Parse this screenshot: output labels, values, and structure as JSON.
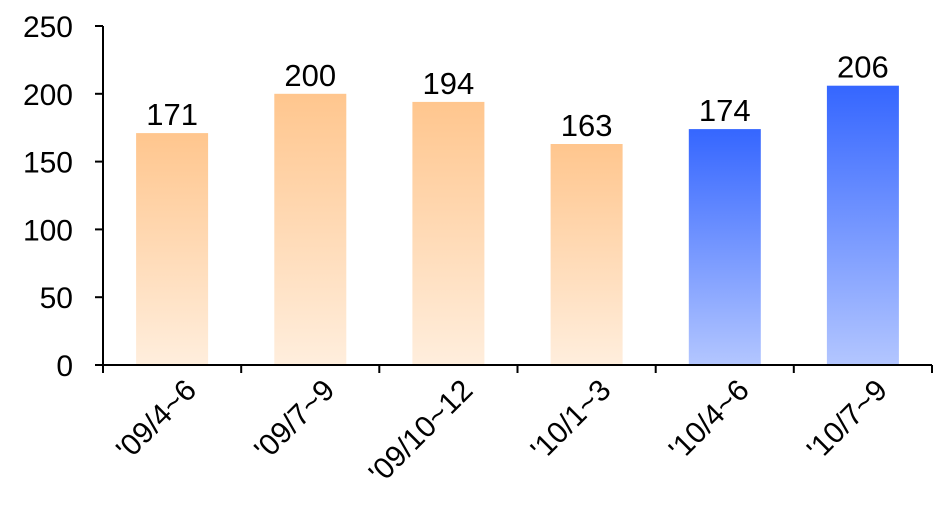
{
  "chart_data": {
    "type": "bar",
    "title": "",
    "xlabel": "",
    "ylabel": "",
    "ylim": [
      0,
      250
    ],
    "yticks": [
      "0",
      "50",
      "100",
      "150",
      "200",
      "250"
    ],
    "grid": false,
    "legend": "none",
    "categories": [
      "'09/4~6",
      "'09/7~9",
      "'09/10~12",
      "'10/1~3",
      "'10/4~6",
      "'10/7~9"
    ],
    "values": [
      171,
      200,
      194,
      163,
      174,
      206
    ],
    "data_labels": [
      "171",
      "200",
      "194",
      "163",
      "174",
      "206"
    ],
    "bar_colors": [
      "orange",
      "orange",
      "orange",
      "orange",
      "blue",
      "blue"
    ],
    "colors": {
      "orange_top": "#FFC68E",
      "orange_bottom": "#FFEEDD",
      "blue_top": "#3566FF",
      "blue_bottom": "#B3C6FF"
    }
  }
}
